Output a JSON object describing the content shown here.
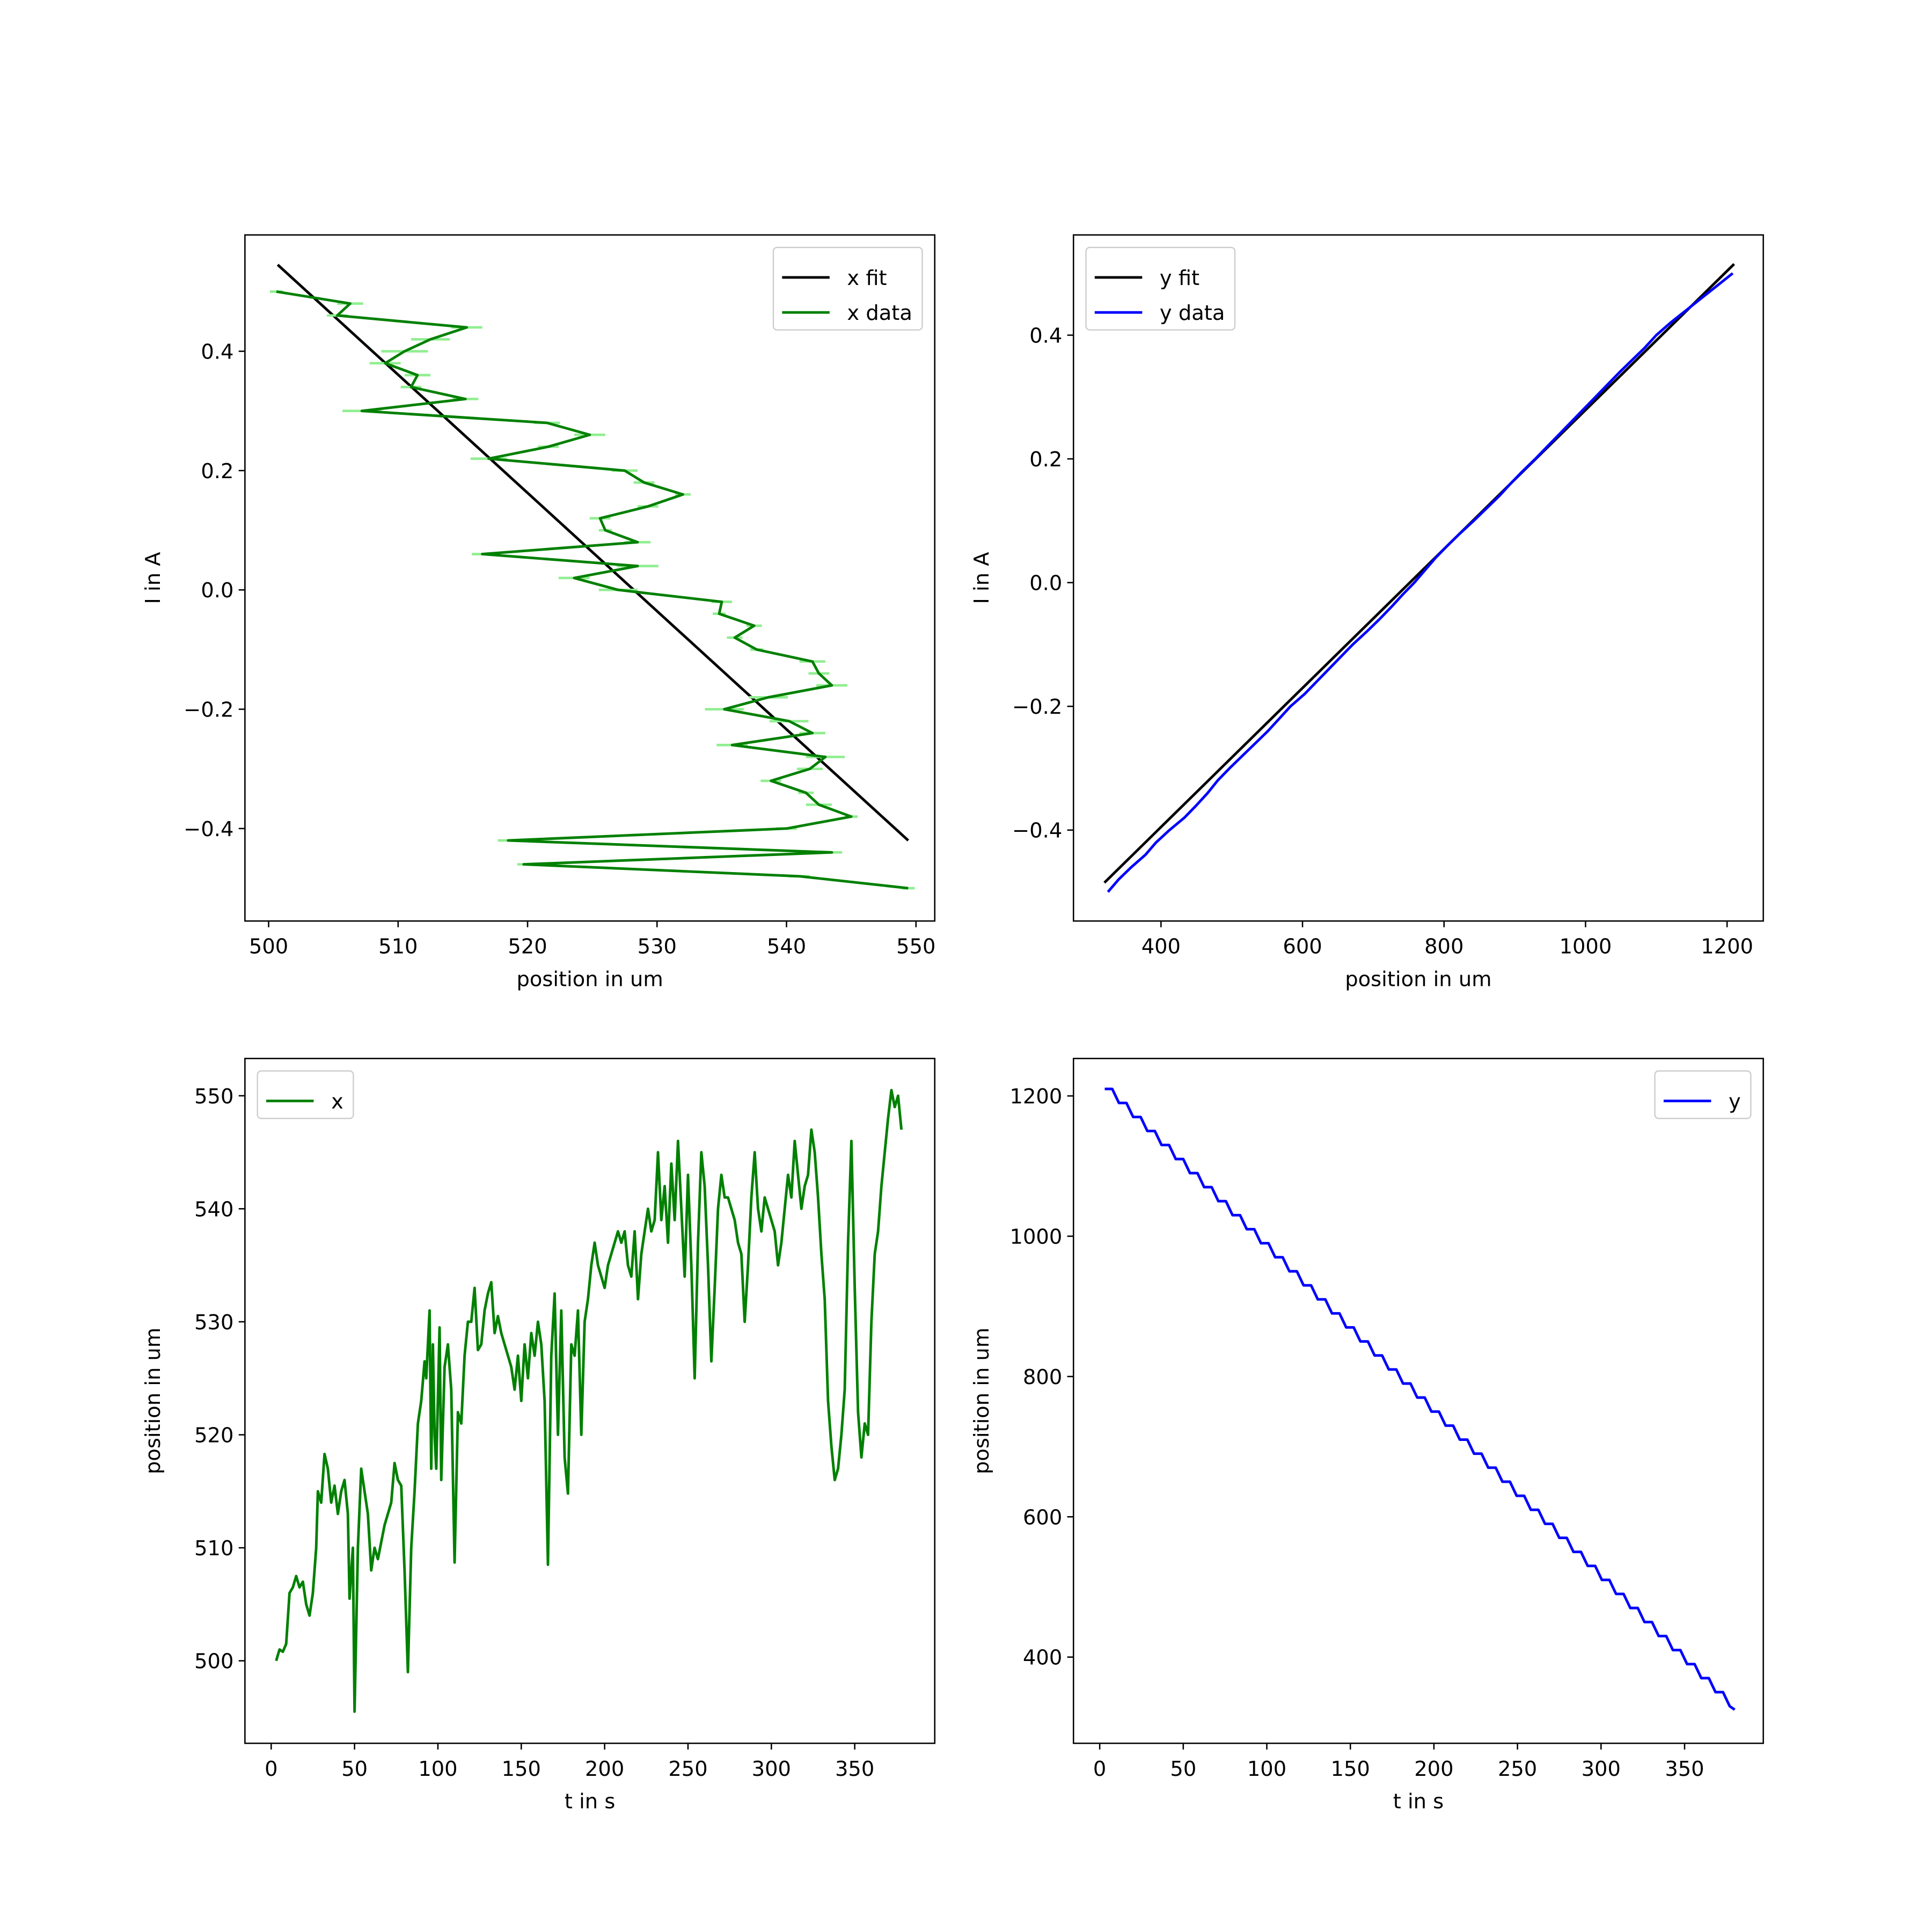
{
  "chart_data": [
    {
      "type": "line",
      "xlabel": "position in um",
      "ylabel": "I in A",
      "xlim": [
        498.17,
        551.45
      ],
      "ylim": [
        -0.555,
        0.595
      ],
      "xticks": [
        500,
        510,
        520,
        530,
        540,
        550
      ],
      "yticks": [
        {
          "value": -0.4,
          "label": "−0.4"
        },
        {
          "value": -0.2,
          "label": "−0.2"
        },
        {
          "value": 0,
          "label": "0.0"
        },
        0.2,
        0.4
      ],
      "legend": "upper right",
      "series": [
        {
          "name": "x fit",
          "color": "#000000",
          "x": [
            500.7,
            549.4
          ],
          "values": [
            0.545,
            -0.42
          ]
        },
        {
          "name": "x data",
          "color": "#008000",
          "error_color": "#90ee90",
          "x": [
            500.6,
            506.3,
            505.3,
            515.3,
            512.5,
            510.5,
            509.0,
            511.5,
            511.0,
            515.2,
            507.2,
            521.5,
            524.8,
            521.6,
            517.0,
            527.5,
            529.0,
            532.0,
            529.3,
            525.6,
            526.0,
            528.5,
            516.5,
            528.5,
            523.6,
            527.0,
            535.0,
            534.8,
            537.5,
            536.0,
            537.7,
            542.0,
            542.5,
            543.5,
            538.6,
            535.2,
            540.2,
            542.0,
            535.8,
            543.0,
            541.8,
            538.8,
            541.5,
            542.5,
            545.0,
            540.0,
            518.5,
            543.5,
            519.7,
            541.0,
            549.4
          ],
          "xerr": [
            0.5,
            1.0,
            0.8,
            1.2,
            1.5,
            1.8,
            1.2,
            1.0,
            0.8,
            1.0,
            1.5,
            1.0,
            1.2,
            0.8,
            1.4,
            1.0,
            0.8,
            0.6,
            0.8,
            0.8,
            0.5,
            1.0,
            0.8,
            1.6,
            1.2,
            1.5,
            0.8,
            0.5,
            0.6,
            0.6,
            0.5,
            1.0,
            0.8,
            1.2,
            1.5,
            1.5,
            1.5,
            1.0,
            1.2,
            1.5,
            1.0,
            0.8,
            0.6,
            1.0,
            0.5,
            0.8,
            0.8,
            0.8,
            0.5,
            0.8,
            0.5
          ],
          "values": [
            0.5,
            0.48,
            0.46,
            0.44,
            0.42,
            0.4,
            0.38,
            0.36,
            0.34,
            0.32,
            0.3,
            0.28,
            0.26,
            0.24,
            0.22,
            0.2,
            0.18,
            0.16,
            0.14,
            0.12,
            0.1,
            0.08,
            0.06,
            0.04,
            0.02,
            0,
            -0.02,
            -0.04,
            -0.06,
            -0.08,
            -0.1,
            -0.12,
            -0.14,
            -0.16,
            -0.18,
            -0.2,
            -0.22,
            -0.24,
            -0.26,
            -0.28,
            -0.3,
            -0.32,
            -0.34,
            -0.36,
            -0.38,
            -0.4,
            -0.42,
            -0.44,
            -0.46,
            -0.48,
            -0.5
          ]
        }
      ]
    },
    {
      "type": "line",
      "xlabel": "position in um",
      "ylabel": "I in A",
      "xlim": [
        276.3,
        1251.2
      ],
      "ylim": [
        -0.547,
        0.562
      ],
      "xticks": [
        400,
        600,
        800,
        1000,
        1200
      ],
      "yticks": [
        {
          "value": -0.4,
          "label": "−0.4"
        },
        {
          "value": -0.2,
          "label": "−0.2"
        },
        {
          "value": 0,
          "label": "0.0"
        },
        0.2,
        0.4
      ],
      "legend": "upper left",
      "series": [
        {
          "name": "y fit",
          "color": "#000000",
          "x": [
            320,
            1210
          ],
          "values": [
            -0.485,
            0.515
          ]
        },
        {
          "name": "y data",
          "color": "#0000ff",
          "x": [
            325,
            340,
            358,
            378,
            393,
            412,
            433,
            450,
            466,
            480,
            497,
            515,
            533,
            551,
            567,
            583,
            603,
            620,
            637,
            654,
            671,
            690,
            708,
            725,
            741,
            758,
            773,
            788,
            805,
            823,
            842,
            860,
            878,
            894,
            911,
            929,
            946,
            963,
            980,
            997,
            1014,
            1031,
            1048,
            1066,
            1084,
            1100,
            1120,
            1142,
            1164,
            1186,
            1208
          ],
          "values": [
            -0.5,
            -0.48,
            -0.46,
            -0.44,
            -0.42,
            -0.4,
            -0.38,
            -0.36,
            -0.34,
            -0.32,
            -0.3,
            -0.28,
            -0.26,
            -0.24,
            -0.22,
            -0.2,
            -0.18,
            -0.16,
            -0.14,
            -0.12,
            -0.1,
            -0.08,
            -0.06,
            -0.04,
            -0.02,
            0,
            0.02,
            0.04,
            0.06,
            0.08,
            0.1,
            0.12,
            0.14,
            0.16,
            0.18,
            0.2,
            0.22,
            0.24,
            0.26,
            0.28,
            0.3,
            0.32,
            0.34,
            0.36,
            0.38,
            0.4,
            0.42,
            0.44,
            0.46,
            0.48,
            0.5
          ]
        }
      ]
    },
    {
      "type": "line",
      "xlabel": "t in s",
      "ylabel": "position in um",
      "xlim": [
        -15.74,
        398.0
      ],
      "ylim": [
        492.7,
        553.3
      ],
      "xticks": [
        0,
        50,
        100,
        150,
        200,
        250,
        300,
        350
      ],
      "yticks": [
        500,
        510,
        520,
        530,
        540,
        550
      ],
      "legend": "upper left",
      "series": [
        {
          "name": "x",
          "color": "#008000",
          "x": [
            3,
            5,
            7,
            9,
            11,
            13,
            15,
            17,
            19,
            21,
            23,
            25,
            27,
            28,
            30,
            32,
            34,
            36,
            38,
            40,
            42,
            44,
            46,
            47,
            49,
            50,
            52,
            54,
            56,
            58,
            60,
            62,
            64,
            66,
            68,
            70,
            72,
            74,
            76,
            78,
            80,
            82,
            84,
            86,
            88,
            90,
            92,
            93,
            95,
            96,
            97,
            98,
            99,
            101,
            102,
            104,
            106,
            108,
            110,
            112,
            114,
            116,
            118,
            120,
            122,
            124,
            126,
            128,
            130,
            132,
            134,
            136,
            138,
            140,
            142,
            144,
            146,
            148,
            150,
            152,
            154,
            156,
            158,
            160,
            162,
            164,
            166,
            168,
            170,
            172,
            174,
            176,
            178,
            180,
            182,
            184,
            186,
            188,
            190,
            192,
            194,
            196,
            198,
            200,
            202,
            204,
            206,
            208,
            210,
            212,
            214,
            216,
            218,
            220,
            222,
            224,
            226,
            228,
            230,
            232,
            234,
            236,
            238,
            240,
            242,
            244,
            246,
            248,
            250,
            252,
            254,
            256,
            258,
            260,
            262,
            264,
            266,
            268,
            270,
            272,
            274,
            276,
            278,
            280,
            282,
            284,
            286,
            288,
            290,
            292,
            294,
            296,
            298,
            300,
            302,
            304,
            306,
            308,
            310,
            312,
            314,
            316,
            318,
            320,
            322,
            324,
            326,
            328,
            330,
            332,
            334,
            336,
            338,
            340,
            342,
            344,
            346,
            348,
            350,
            352,
            354,
            356,
            358,
            360,
            362,
            364,
            366,
            368,
            370,
            372,
            374,
            376,
            378
          ],
          "values": [
            500,
            501,
            500.8,
            501.5,
            506,
            506.5,
            507.5,
            506.5,
            507,
            505,
            504,
            506,
            510,
            515,
            514,
            518.3,
            517,
            514,
            515.5,
            513,
            515,
            516,
            513,
            505.5,
            510,
            495.5,
            510,
            517,
            515,
            513,
            508,
            510,
            509,
            510.5,
            512,
            513,
            514,
            517.5,
            516,
            515.5,
            508,
            499,
            510,
            515,
            521,
            523,
            526.5,
            525,
            531,
            517,
            528,
            520,
            517,
            529.5,
            516,
            526,
            528,
            524,
            508.7,
            522,
            521,
            527,
            530,
            530,
            533,
            527.5,
            528,
            531,
            532.5,
            533.5,
            529,
            530.5,
            529,
            528,
            527,
            526,
            524,
            527,
            523,
            528,
            525,
            529,
            527,
            530,
            528,
            523,
            508.5,
            527,
            532.5,
            520,
            531,
            518,
            514.8,
            528,
            527,
            531,
            520,
            530,
            532,
            535,
            537,
            535,
            534,
            533,
            535,
            536,
            537,
            538,
            537,
            538,
            535,
            534,
            538,
            532,
            536,
            538,
            540,
            538,
            539,
            545,
            539,
            542,
            537,
            544,
            539,
            546,
            540,
            534,
            543,
            535,
            525,
            537,
            545,
            542,
            535,
            526.5,
            533,
            540,
            543,
            541,
            541,
            540,
            539,
            537,
            536,
            530,
            535,
            541,
            545,
            540,
            538,
            541,
            540,
            539,
            538,
            535,
            537,
            540,
            543,
            541,
            546,
            543,
            540,
            542,
            543,
            547,
            545,
            541,
            536,
            532,
            523,
            519,
            516,
            517,
            520,
            524,
            537,
            546,
            533,
            522,
            518,
            521,
            520,
            530,
            536,
            538,
            542,
            545,
            548,
            550.5,
            549,
            550,
            547
          ]
        }
      ]
    },
    {
      "type": "line",
      "xlabel": "t in s",
      "ylabel": "position in um",
      "xlim": [
        -15.7,
        397.1
      ],
      "ylim": [
        277.1,
        1253.4
      ],
      "xticks": [
        0,
        50,
        100,
        150,
        200,
        250,
        300,
        350
      ],
      "yticks": [
        400,
        600,
        800,
        1000,
        1200
      ],
      "legend": "upper right",
      "series": [
        {
          "name": "y",
          "color": "#0000ff",
          "x": [
            3,
            7.5,
            11.5,
            16,
            20,
            24.5,
            28.5,
            33,
            37,
            41.5,
            45.5,
            50,
            54,
            58.5,
            62.5,
            67,
            71,
            75.5,
            79.5,
            84,
            88,
            92.5,
            96.5,
            101,
            105,
            109.5,
            113.5,
            118,
            122,
            126.5,
            130.5,
            135,
            139,
            143.5,
            147.5,
            152,
            156,
            160.5,
            164.5,
            169,
            173,
            177.5,
            181.5,
            186,
            190,
            194.5,
            198.5,
            203,
            207,
            211.5,
            215.5,
            220,
            224,
            228.5,
            232.5,
            237,
            241,
            245.5,
            249.5,
            254,
            258,
            262.5,
            266.5,
            271,
            275,
            279.5,
            283.5,
            288,
            292,
            296.5,
            300.5,
            305,
            309,
            313.5,
            317.5,
            322,
            326,
            330.5,
            334.5,
            339,
            343,
            347.5,
            351.5,
            356,
            360,
            364.5,
            368.5,
            373,
            377,
            380
          ],
          "values": [
            1210,
            1210,
            1190,
            1190,
            1170,
            1170,
            1150,
            1150,
            1130,
            1130,
            1110,
            1110,
            1090,
            1090,
            1070,
            1070,
            1050,
            1050,
            1030,
            1030,
            1010,
            1010,
            990,
            990,
            970,
            970,
            950,
            950,
            930,
            930,
            910,
            910,
            890,
            890,
            870,
            870,
            850,
            850,
            830,
            830,
            810,
            810,
            790,
            790,
            770,
            770,
            750,
            750,
            730,
            730,
            710,
            710,
            690,
            690,
            670,
            670,
            650,
            650,
            630,
            630,
            610,
            610,
            590,
            590,
            570,
            570,
            550,
            550,
            530,
            530,
            510,
            510,
            490,
            490,
            470,
            470,
            450,
            450,
            430,
            430,
            410,
            410,
            390,
            390,
            370,
            370,
            350,
            350,
            330,
            325
          ]
        }
      ]
    }
  ]
}
